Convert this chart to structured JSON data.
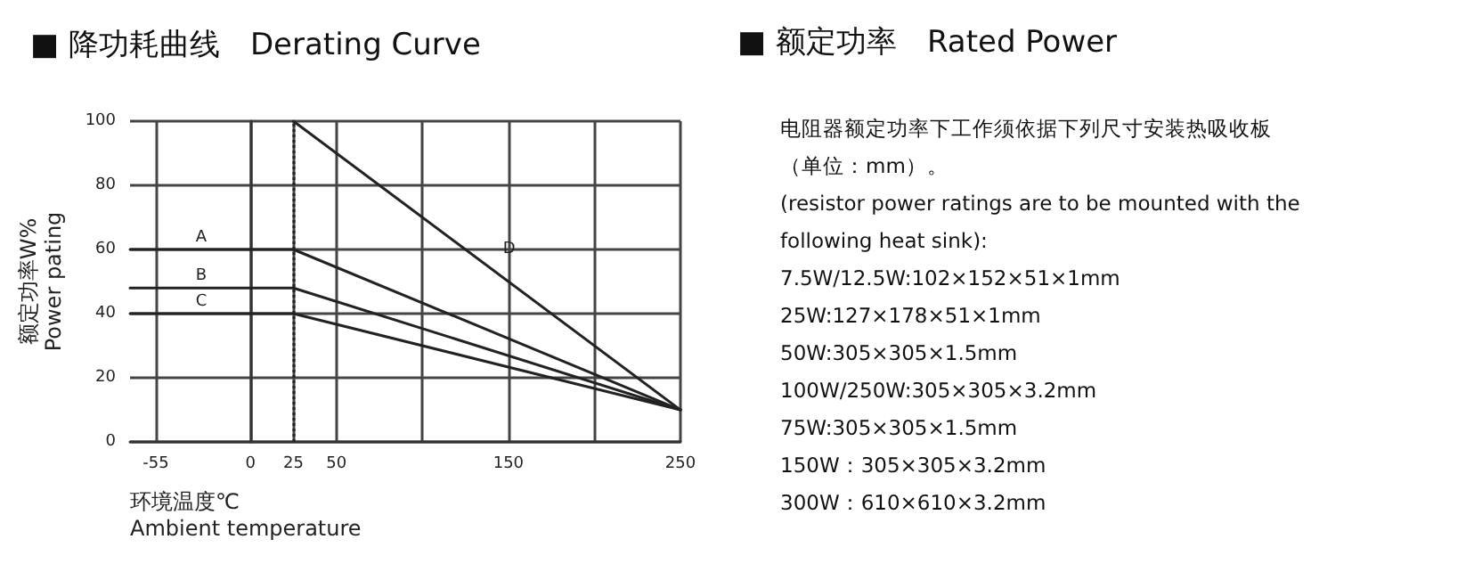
{
  "chart_data": [
    {
      "type": "line",
      "title": "■ 降功耗曲线　Derating Curve",
      "xlabel": "环境温度℃\nAmbient temperature",
      "ylabel": "额定功率W%\nPower pating",
      "xlim": [
        -70,
        250
      ],
      "xticks": [
        -55,
        0,
        25,
        50,
        {
          "value": 100,
          "label": null
        },
        150,
        {
          "value": 200,
          "label": null
        },
        250
      ],
      "ylim": [
        0,
        100
      ],
      "yticks": [
        0,
        20,
        40,
        60,
        80,
        100
      ],
      "grid": true,
      "legend": false,
      "line_style": "solid",
      "marker": "none",
      "ref_lines": [
        {
          "axis": "x",
          "value": 25,
          "line_style": "dotted",
          "color": "#222222"
        }
      ],
      "series": [
        {
          "name": "A",
          "color": "#222222",
          "x": [
            -70,
            25,
            250
          ],
          "values": [
            60,
            60,
            10
          ]
        },
        {
          "name": "B",
          "color": "#222222",
          "x": [
            -70,
            25,
            250
          ],
          "values": [
            48,
            48,
            10
          ]
        },
        {
          "name": "C",
          "color": "#222222",
          "x": [
            -70,
            25,
            250
          ],
          "values": [
            40,
            40,
            10
          ]
        },
        {
          "name": "D",
          "color": "#222222",
          "x": [
            25,
            250
          ],
          "values": [
            100,
            10
          ]
        }
      ]
    },
    {
      "type": "other",
      "title": "■ 额定功率　Rated Power",
      "annotations": [
        "电阻器额定功率下工作须依据下列尺寸安装热吸收板",
        "（单位：mm）。",
        "(resistor power ratings are to be mounted with the",
        "following heat sink):",
        "7.5W/12.5W:102×152×51×1mm",
        "25W:127×178×51×1mm",
        "50W:305×305×1.5mm",
        "100W/250W:305×305×3.2mm",
        "75W:305×305×1.5mm",
        "150W：305×305×3.2mm",
        "300W：610×610×3.2mm"
      ]
    }
  ]
}
